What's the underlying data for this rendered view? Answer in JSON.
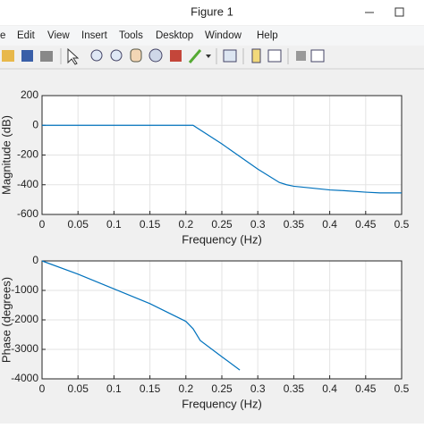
{
  "window": {
    "title": "Figure 1",
    "menu": [
      "e",
      "Edit",
      "View",
      "Insert",
      "Tools",
      "Desktop",
      "Window",
      "Help"
    ]
  },
  "chart_data": [
    {
      "type": "line",
      "xlabel": "Frequency (Hz)",
      "ylabel": "Magnitude (dB)",
      "x": [
        0,
        0.1,
        0.2,
        0.21,
        0.25,
        0.3,
        0.33,
        0.34,
        0.35,
        0.37,
        0.4,
        0.42,
        0.45,
        0.47,
        0.5
      ],
      "series": [
        {
          "color": "#0072bd",
          "values": [
            0,
            0,
            0,
            0,
            -125,
            -295,
            -385,
            -400,
            -410,
            -420,
            -435,
            -440,
            -450,
            -455,
            -455
          ]
        }
      ],
      "xlim": [
        0,
        0.5
      ],
      "ylim": [
        -600,
        200
      ],
      "xticks": [
        0,
        0.05,
        0.1,
        0.15,
        0.2,
        0.25,
        0.3,
        0.35,
        0.4,
        0.45,
        0.5
      ],
      "yticks": [
        200,
        0,
        -200,
        -400,
        -600
      ],
      "grid": true
    },
    {
      "type": "line",
      "xlabel": "Frequency (Hz)",
      "ylabel": "Phase (degrees)",
      "x": [
        0,
        0.05,
        0.1,
        0.15,
        0.2,
        0.21,
        0.22,
        0.25,
        0.275
      ],
      "series": [
        {
          "color": "#0072bd",
          "values": [
            0,
            -450,
            -950,
            -1450,
            -2050,
            -2300,
            -2700,
            -3250,
            -3700
          ]
        }
      ],
      "xlim": [
        0,
        0.5
      ],
      "ylim": [
        -4000,
        0
      ],
      "xticks": [
        0,
        0.05,
        0.1,
        0.15,
        0.2,
        0.25,
        0.3,
        0.35,
        0.4,
        0.45,
        0.5
      ],
      "yticks": [
        0,
        -1000,
        -2000,
        -3000,
        -4000
      ],
      "grid": true
    }
  ]
}
